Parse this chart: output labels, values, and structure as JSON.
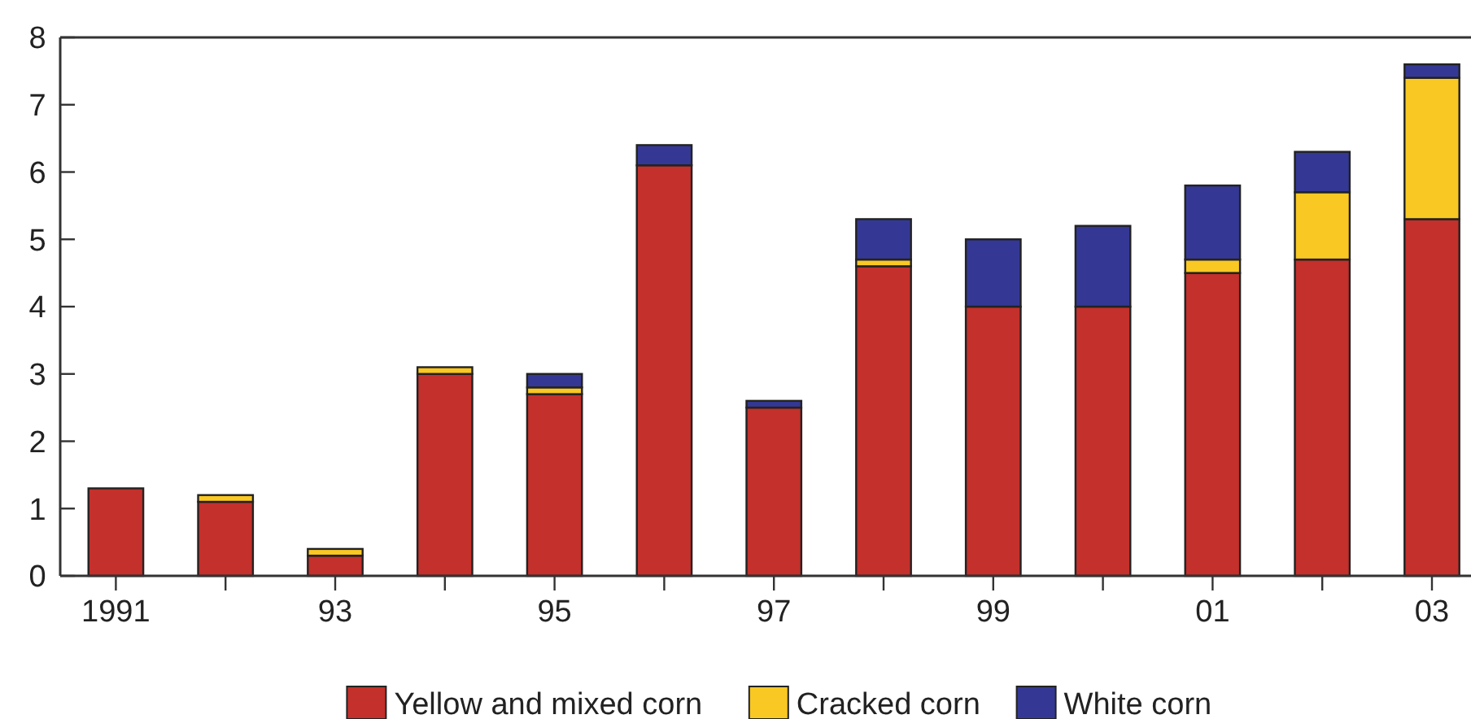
{
  "chart_data": {
    "type": "bar",
    "stacked": true,
    "categories": [
      "1991",
      null,
      "93",
      null,
      "95",
      null,
      "97",
      null,
      "99",
      null,
      "01",
      null,
      "03"
    ],
    "series": [
      {
        "name": "Yellow and mixed corn",
        "color": "#c4302b",
        "values": [
          1.3,
          1.1,
          0.3,
          3.0,
          2.7,
          6.1,
          2.5,
          4.6,
          4.0,
          4.0,
          4.5,
          4.7,
          5.3
        ]
      },
      {
        "name": "Cracked corn",
        "color": "#f9c823",
        "values": [
          0,
          0.1,
          0.1,
          0.1,
          0.1,
          0,
          0,
          0.1,
          0,
          0,
          0.2,
          1.0,
          2.1
        ]
      },
      {
        "name": "White corn",
        "color": "#343894",
        "values": [
          0,
          0,
          0,
          0,
          0.2,
          0.3,
          0.1,
          0.6,
          1.0,
          1.2,
          1.1,
          0.6,
          0.2
        ]
      }
    ],
    "ylim": [
      0,
      8
    ],
    "yticks": [
      0,
      1,
      2,
      3,
      4,
      5,
      6,
      7,
      8
    ],
    "grid": false,
    "legend": "bottom"
  }
}
